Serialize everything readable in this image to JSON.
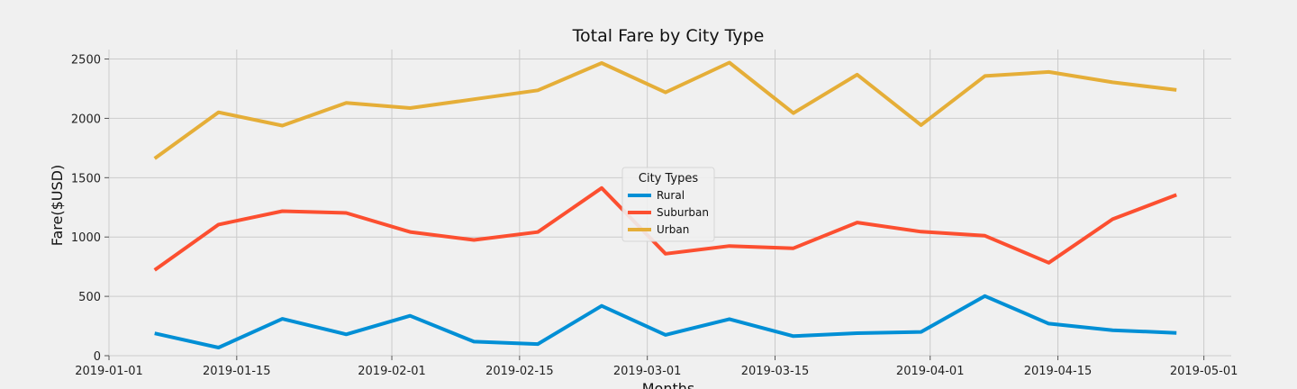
{
  "chart_data": {
    "type": "line",
    "title": "Total Fare by City Type",
    "xlabel": "Months",
    "ylabel": "Fare($USD)",
    "ylim": [
      0,
      2580
    ],
    "xlim": [
      "2019-01-01",
      "2019-05-04"
    ],
    "grid": true,
    "legend": {
      "title": "City Types",
      "placement": "center"
    },
    "x": [
      "2019-01-06",
      "2019-01-13",
      "2019-01-20",
      "2019-01-27",
      "2019-02-03",
      "2019-02-10",
      "2019-02-17",
      "2019-02-24",
      "2019-03-03",
      "2019-03-10",
      "2019-03-17",
      "2019-03-24",
      "2019-03-31",
      "2019-04-07",
      "2019-04-14",
      "2019-04-21",
      "2019-04-28"
    ],
    "x_ticks": [
      "2019-01-01",
      "2019-01-15",
      "2019-02-01",
      "2019-02-15",
      "2019-03-01",
      "2019-03-15",
      "2019-04-01",
      "2019-04-15",
      "2019-05-01"
    ],
    "y_ticks": [
      0,
      500,
      1000,
      1500,
      2000,
      2500
    ],
    "series": [
      {
        "name": "Rural",
        "color": "#008fd5",
        "values": [
          188,
          68,
          310,
          180,
          336,
          118,
          98,
          420,
          175,
          308,
          165,
          190,
          200,
          502,
          270,
          215,
          192
        ]
      },
      {
        "name": "Suburban",
        "color": "#fc4f30",
        "values": [
          722,
          1105,
          1218,
          1203,
          1043,
          975,
          1042,
          1413,
          859,
          924,
          905,
          1122,
          1045,
          1011,
          783,
          1150,
          1355
        ]
      },
      {
        "name": "Urban",
        "color": "#e5ae38",
        "values": [
          1662,
          2051,
          1939,
          2130,
          2087,
          2161,
          2236,
          2466,
          2219,
          2470,
          2044,
          2368,
          1943,
          2357,
          2391,
          2304,
          2239
        ]
      }
    ]
  }
}
